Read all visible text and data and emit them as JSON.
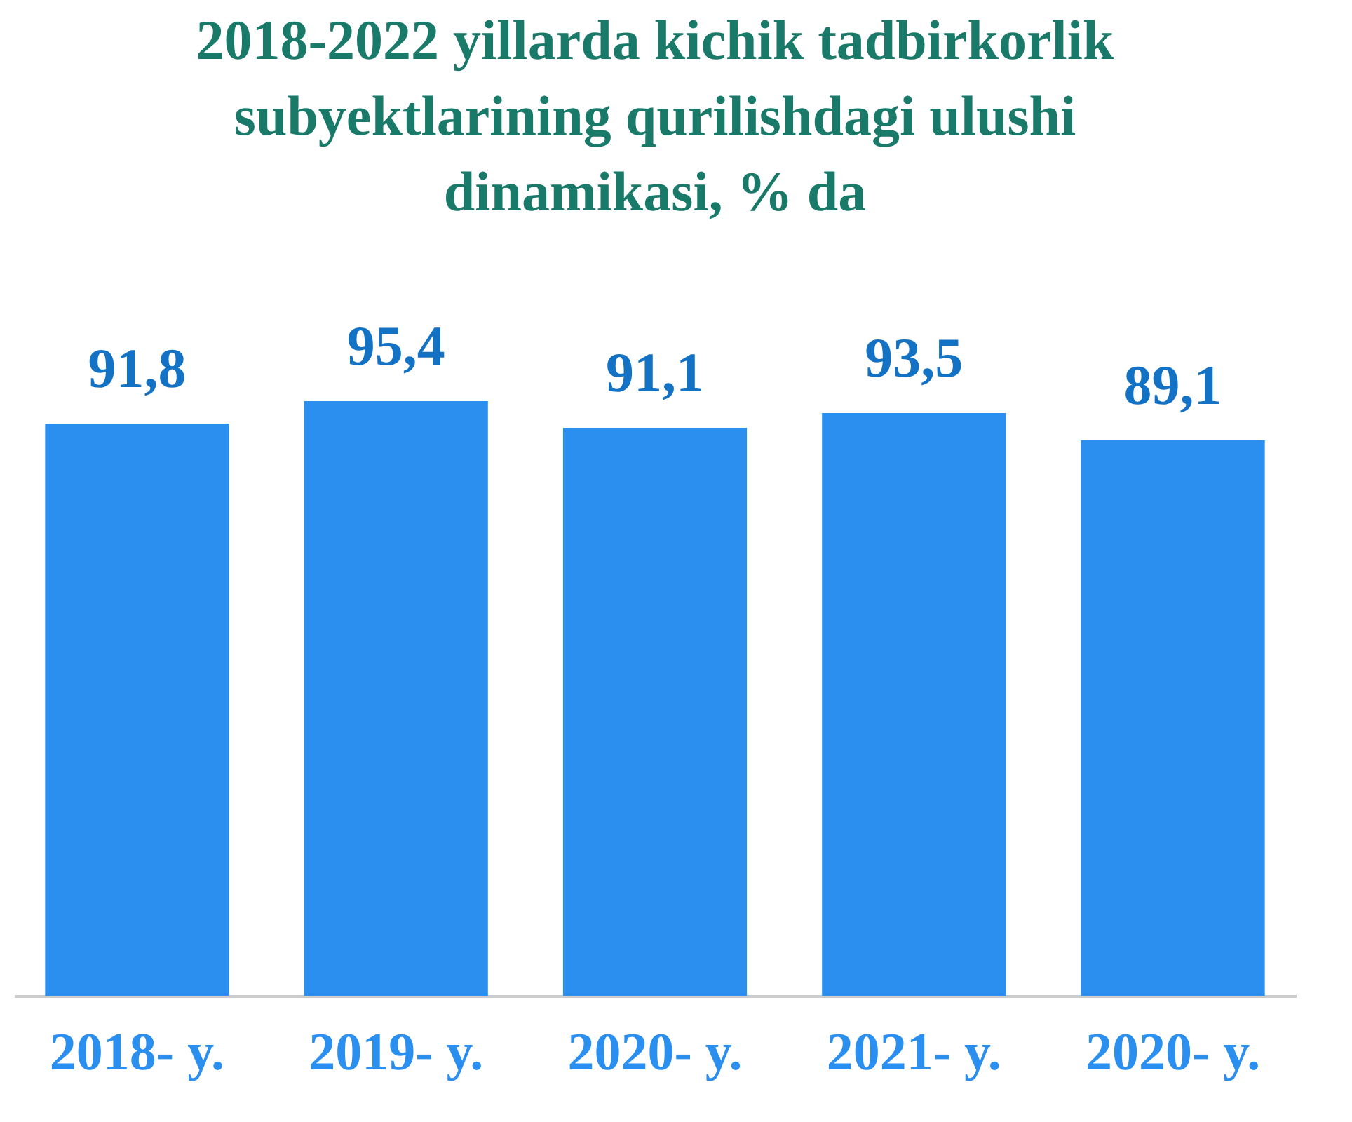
{
  "chart_data": {
    "type": "bar",
    "title": "2018-2022 yillarda kichik tadbirkorlik subyektlarining qurilishdagi ulushi dinamikasi, % da",
    "categories": [
      "2018- y.",
      "2019- y.",
      "2020- y.",
      "2021- y.",
      "2020- y."
    ],
    "values": [
      91.8,
      95.4,
      91.1,
      93.5,
      89.1
    ],
    "value_labels": [
      "91,8",
      "95,4",
      "91,1",
      "93,5",
      "89,1"
    ],
    "color": "#2b8ff0",
    "tick_labels": "x"
  }
}
